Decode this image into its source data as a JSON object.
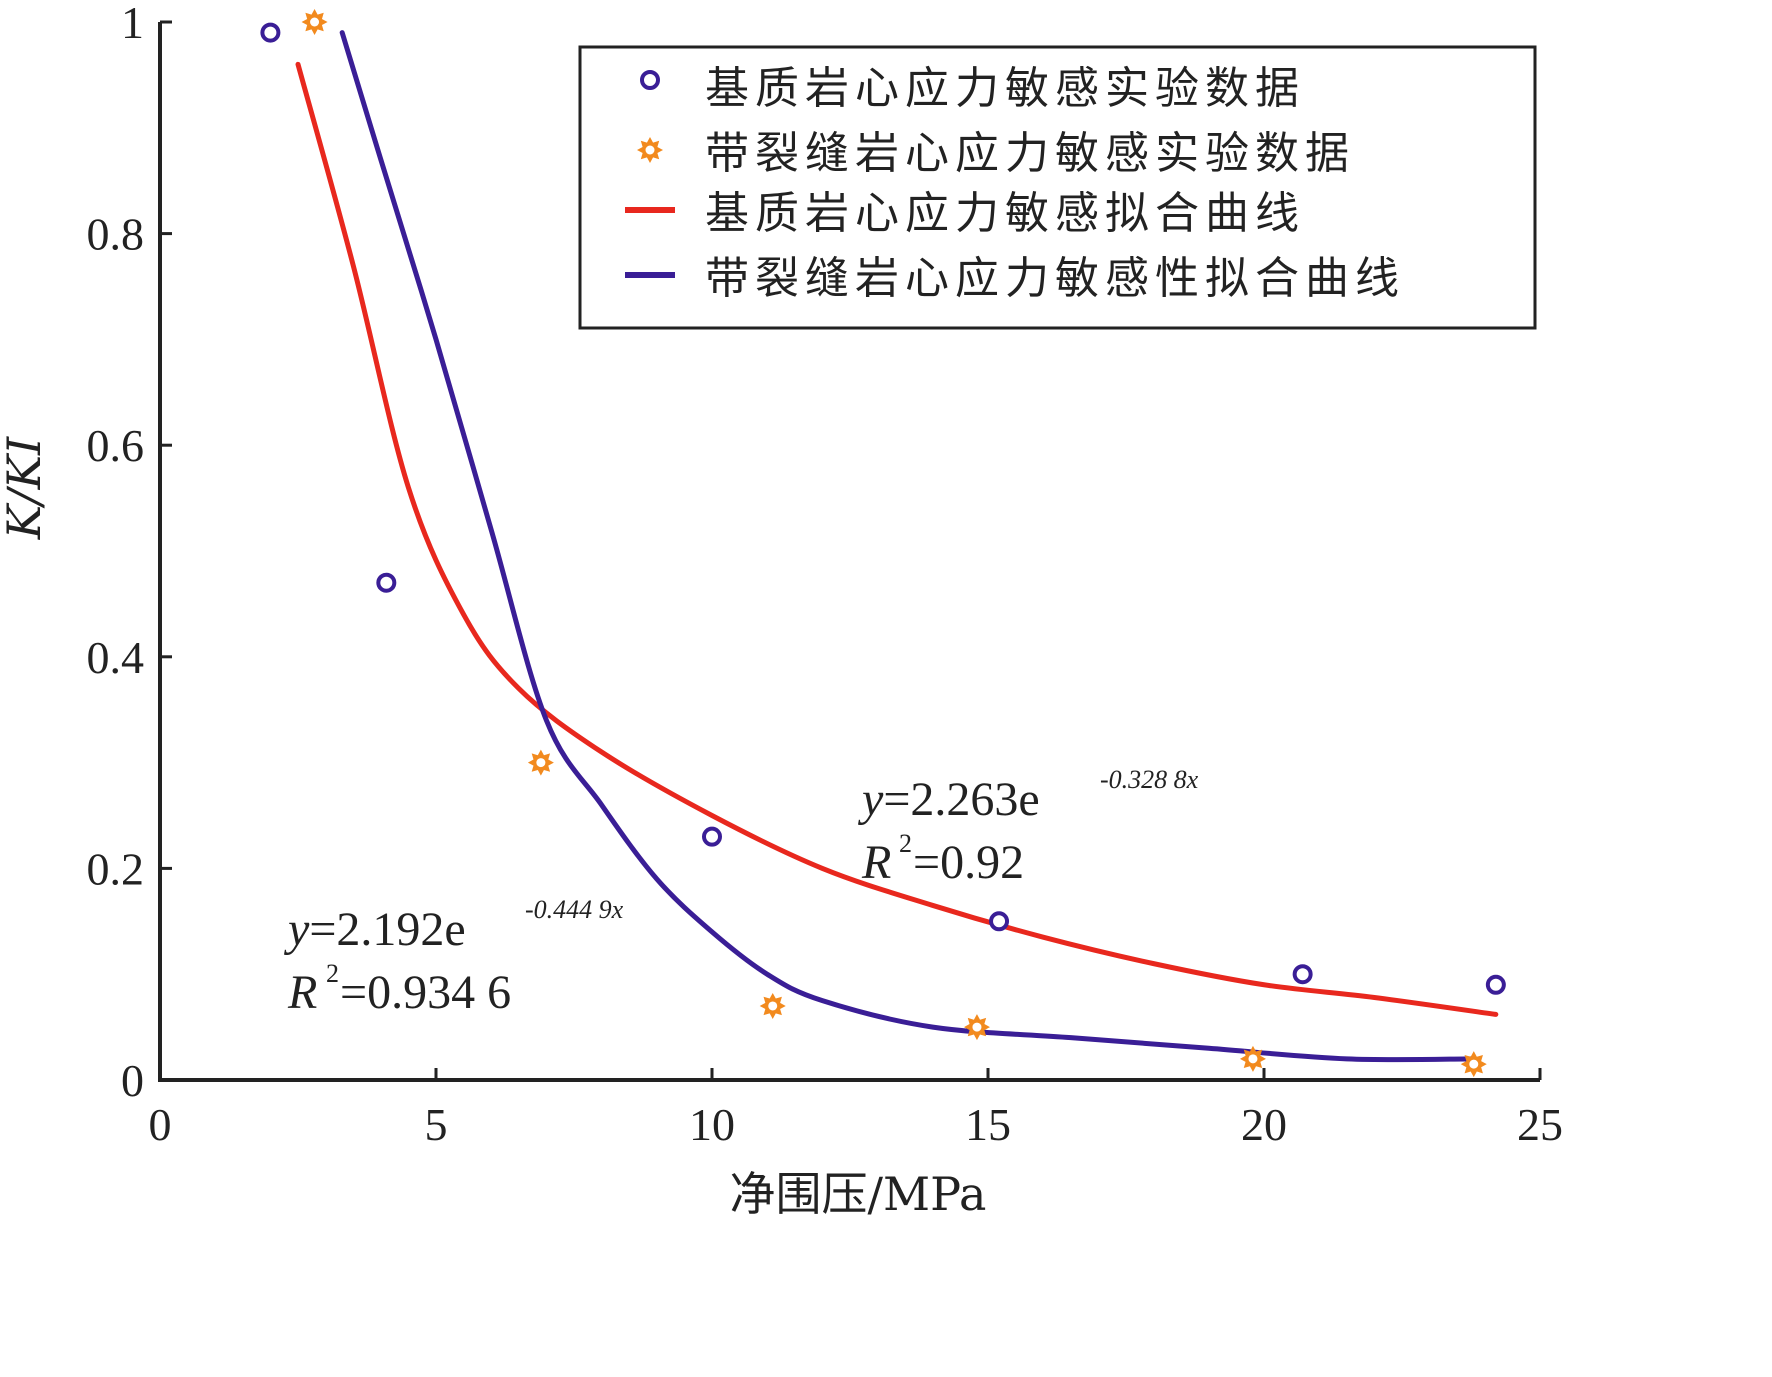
{
  "chart_data": {
    "type": "scatter",
    "title": "",
    "xlabel": "净围压/MPa",
    "ylabel": "K/KI",
    "xlim": [
      0,
      25
    ],
    "ylim": [
      0,
      1
    ],
    "x_ticks": [
      "0",
      "5",
      "10",
      "15",
      "20",
      "25"
    ],
    "y_ticks": [
      "0",
      "0.2",
      "0.4",
      "0.6",
      "0.8",
      "1"
    ],
    "grid": false,
    "legend_position": "top-right",
    "series": [
      {
        "name": "基质岩心应力敏感实验数据",
        "kind": "scatter",
        "marker": "circle",
        "color": "#3a1e96",
        "points": [
          {
            "x": 2.0,
            "y": 0.99
          },
          {
            "x": 4.1,
            "y": 0.47
          },
          {
            "x": 10.0,
            "y": 0.23
          },
          {
            "x": 15.2,
            "y": 0.15
          },
          {
            "x": 20.7,
            "y": 0.1
          },
          {
            "x": 24.2,
            "y": 0.09
          }
        ]
      },
      {
        "name": "带裂缝岩心应力敏感实验数据",
        "kind": "scatter",
        "marker": "star",
        "color": "#f28a1e",
        "points": [
          {
            "x": 2.8,
            "y": 1.0
          },
          {
            "x": 6.9,
            "y": 0.3
          },
          {
            "x": 11.1,
            "y": 0.07
          },
          {
            "x": 14.8,
            "y": 0.05
          },
          {
            "x": 19.8,
            "y": 0.02
          },
          {
            "x": 23.8,
            "y": 0.015
          }
        ]
      },
      {
        "name": "基质岩心应力敏感拟合曲线",
        "kind": "line",
        "color": "#e8281e",
        "points": [
          {
            "x": 2.5,
            "y": 0.96
          },
          {
            "x": 3.5,
            "y": 0.77
          },
          {
            "x": 4.5,
            "y": 0.56
          },
          {
            "x": 5.5,
            "y": 0.44
          },
          {
            "x": 6.5,
            "y": 0.37
          },
          {
            "x": 8.0,
            "y": 0.31
          },
          {
            "x": 10.0,
            "y": 0.25
          },
          {
            "x": 12.0,
            "y": 0.2
          },
          {
            "x": 14.0,
            "y": 0.165
          },
          {
            "x": 16.0,
            "y": 0.135
          },
          {
            "x": 18.0,
            "y": 0.11
          },
          {
            "x": 20.0,
            "y": 0.09
          },
          {
            "x": 22.0,
            "y": 0.078
          },
          {
            "x": 24.2,
            "y": 0.062
          }
        ]
      },
      {
        "name": "带裂缝岩心应力敏感性拟合曲线",
        "kind": "line",
        "color": "#3a1e96",
        "points": [
          {
            "x": 3.3,
            "y": 0.99
          },
          {
            "x": 4.0,
            "y": 0.87
          },
          {
            "x": 5.0,
            "y": 0.7
          },
          {
            "x": 6.0,
            "y": 0.52
          },
          {
            "x": 7.0,
            "y": 0.34
          },
          {
            "x": 8.0,
            "y": 0.26
          },
          {
            "x": 9.0,
            "y": 0.19
          },
          {
            "x": 10.0,
            "y": 0.14
          },
          {
            "x": 11.0,
            "y": 0.1
          },
          {
            "x": 12.0,
            "y": 0.075
          },
          {
            "x": 14.0,
            "y": 0.05
          },
          {
            "x": 16.5,
            "y": 0.04
          },
          {
            "x": 19.0,
            "y": 0.03
          },
          {
            "x": 21.5,
            "y": 0.02
          },
          {
            "x": 23.8,
            "y": 0.02
          }
        ]
      }
    ],
    "annotations": [
      {
        "id": "matrix",
        "y_label": "y",
        "equation_text": "=2.263e",
        "exponent": "-0.328 8x",
        "r2_label": "R",
        "r2_sup": "2",
        "r2_value": "=0.92"
      },
      {
        "id": "fracture",
        "y_label": "y",
        "equation_text": "=2.192e",
        "exponent": "-0.444 9x",
        "r2_label": "R",
        "r2_sup": "2",
        "r2_value": "=0.934 6"
      }
    ]
  }
}
